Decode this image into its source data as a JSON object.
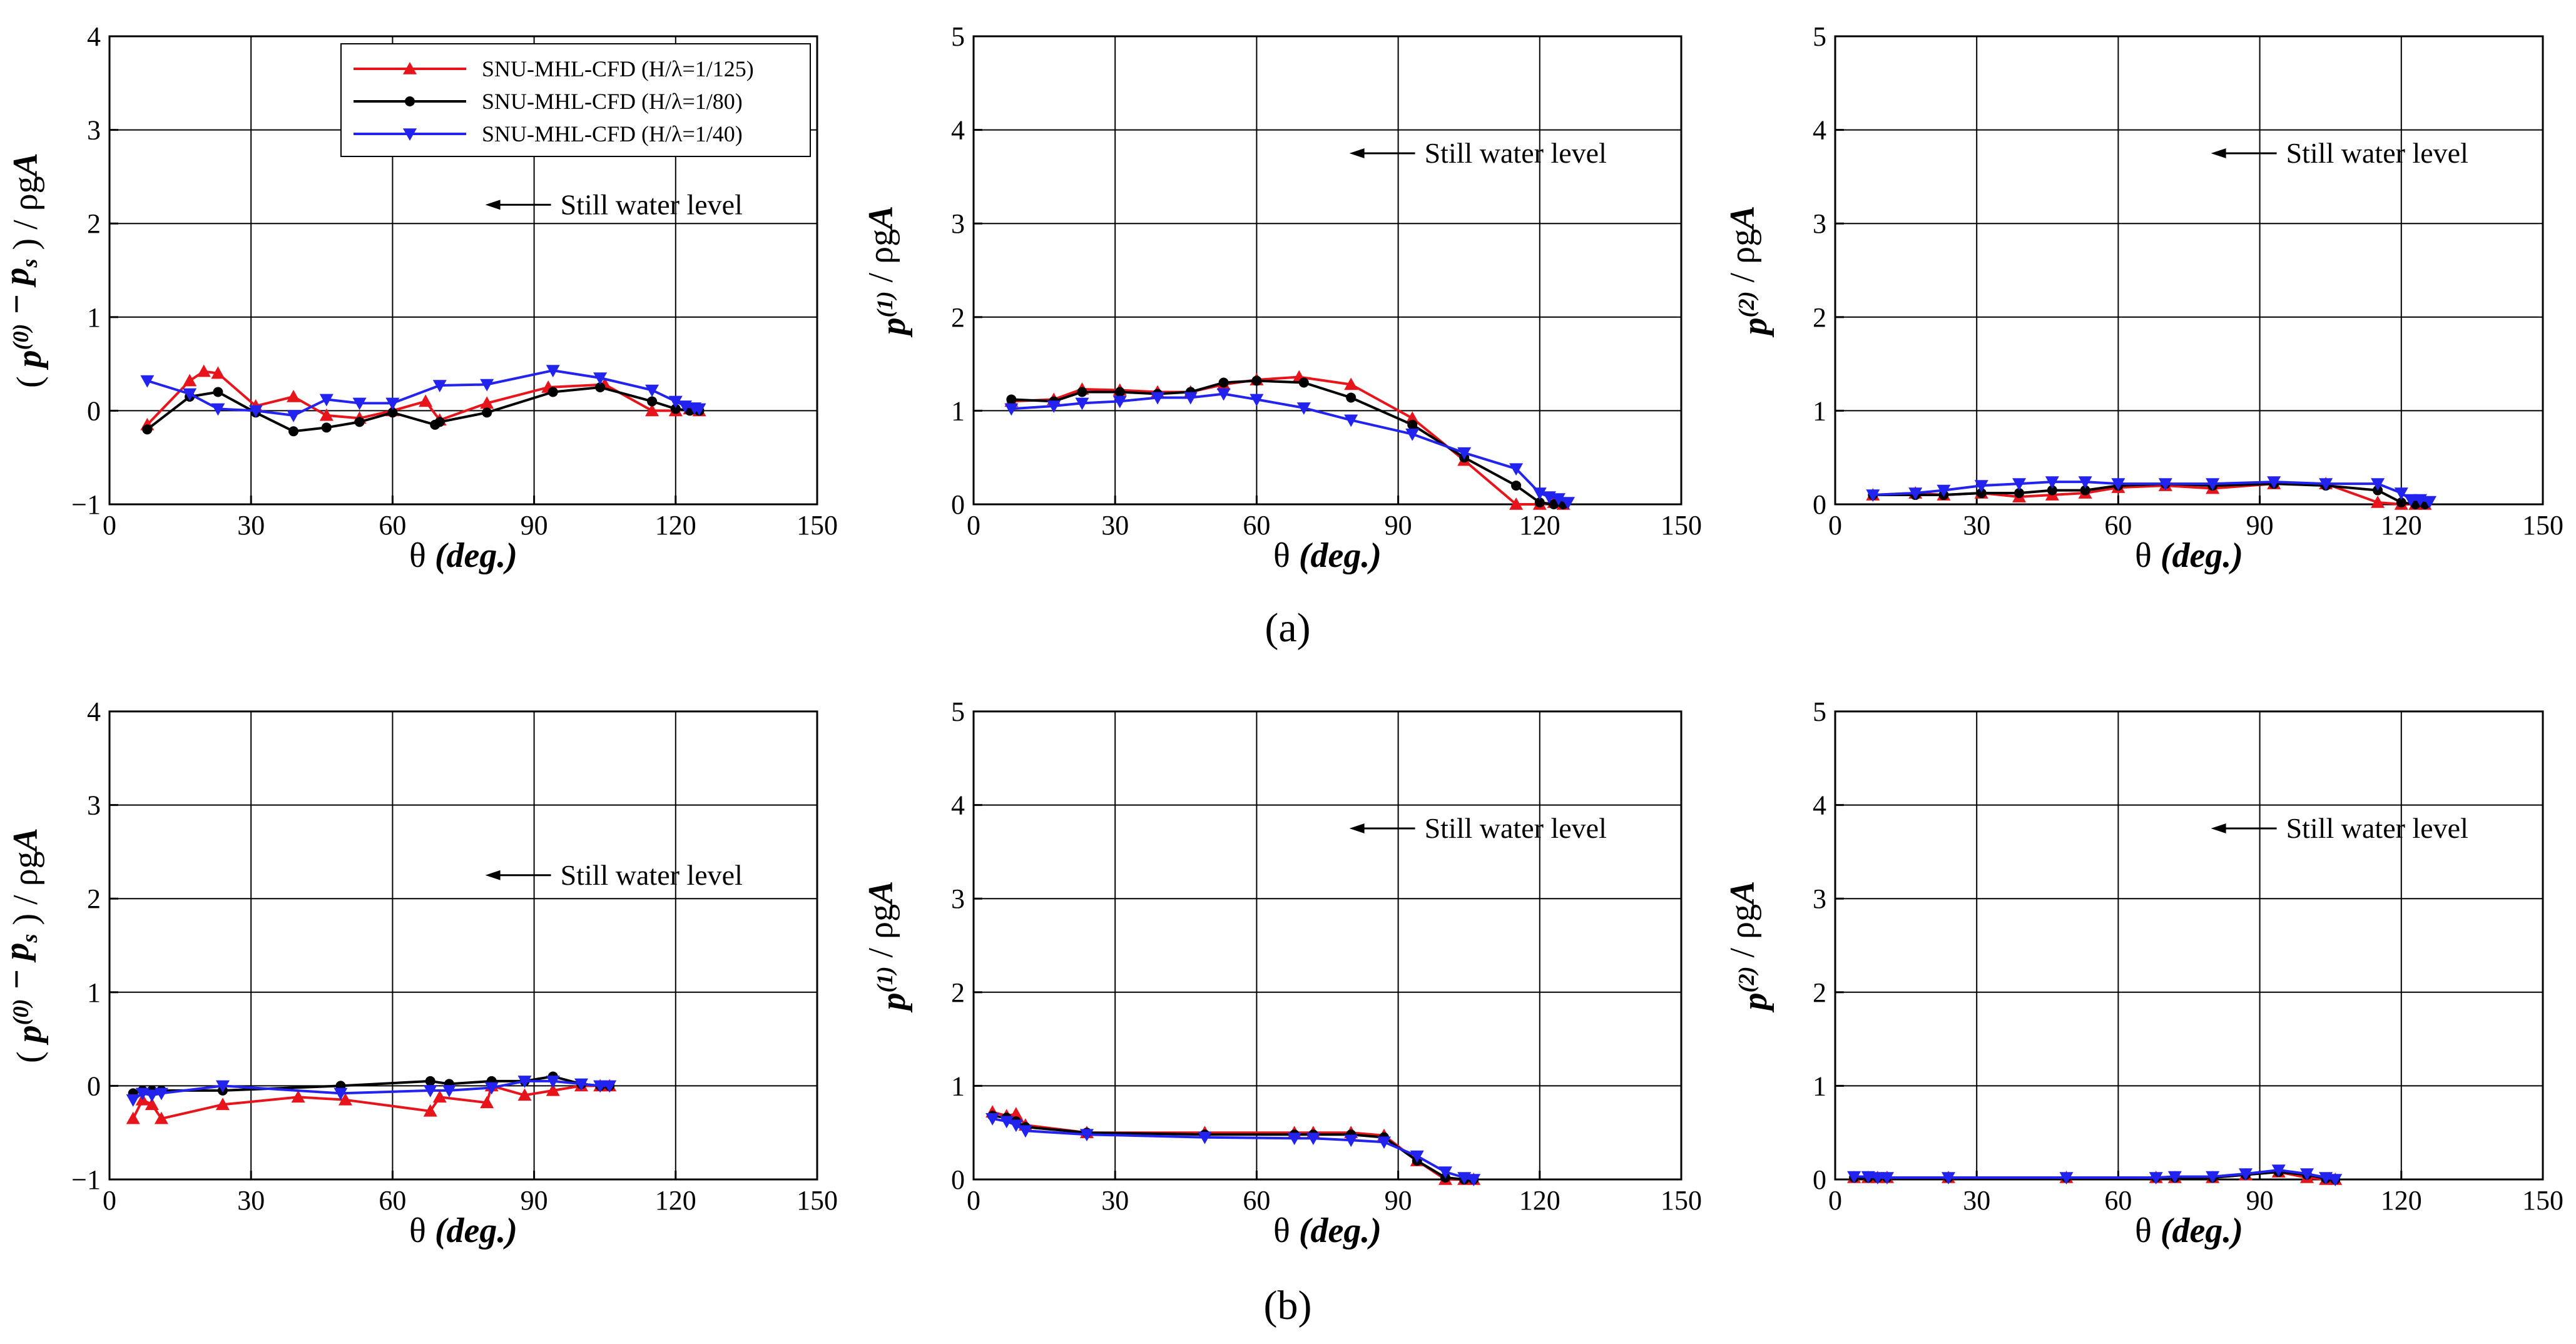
{
  "figure_labels": {
    "a": "(a)",
    "b": "(b)"
  },
  "legend": [
    {
      "label": "SNU-MHL-CFD (H/λ=1/125)",
      "color": "#e8141c",
      "marker": "triangle-up"
    },
    {
      "label": "SNU-MHL-CFD (H/λ=1/80)",
      "color": "#000000",
      "marker": "circle"
    },
    {
      "label": "SNU-MHL-CFD (H/λ=1/40)",
      "color": "#2323f0",
      "marker": "triangle-down"
    }
  ],
  "annotation": "Still water level",
  "colors": {
    "s125": "#e8141c",
    "s80": "#000000",
    "s40": "#2323f0"
  },
  "chart_data": [
    {
      "id": "a0",
      "type": "line",
      "row": "a",
      "xlabel": "θ (deg.)",
      "ylabel": "(p(0) − ps) / ρgA",
      "xlim": [
        0,
        150
      ],
      "ylim": [
        -1,
        4
      ],
      "xticks": [
        0,
        30,
        60,
        90,
        120,
        150
      ],
      "yticks": [
        -1,
        0,
        1,
        2,
        3,
        4
      ],
      "annotation_at": [
        90,
        2.2
      ],
      "series": [
        {
          "name": "SNU-MHL-CFD (H/λ=1/125)",
          "x": [
            8,
            17,
            20,
            23,
            31,
            39,
            46,
            53,
            60,
            67,
            70,
            80,
            93,
            105,
            115,
            120,
            123,
            125
          ],
          "y": [
            -0.15,
            0.32,
            0.42,
            0.4,
            0.05,
            0.15,
            -0.05,
            -0.08,
            0.0,
            0.1,
            -0.1,
            0.08,
            0.25,
            0.28,
            0.0,
            0.0,
            0.02,
            0.0
          ]
        },
        {
          "name": "SNU-MHL-CFD (H/λ=1/80)",
          "x": [
            8,
            17,
            23,
            31,
            39,
            46,
            53,
            60,
            69,
            70,
            80,
            94,
            104,
            115,
            120,
            123,
            125
          ],
          "y": [
            -0.2,
            0.15,
            0.2,
            -0.02,
            -0.22,
            -0.18,
            -0.12,
            -0.02,
            -0.15,
            -0.12,
            -0.02,
            0.2,
            0.25,
            0.1,
            0.02,
            0.0,
            0.0
          ]
        },
        {
          "name": "SNU-MHL-CFD (H/λ=1/40)",
          "x": [
            8,
            17,
            23,
            31,
            39,
            46,
            53,
            60,
            70,
            80,
            94,
            104,
            115,
            120,
            122,
            124,
            125
          ],
          "y": [
            0.32,
            0.18,
            0.02,
            0.0,
            -0.05,
            0.12,
            0.08,
            0.08,
            0.27,
            0.28,
            0.43,
            0.35,
            0.22,
            0.1,
            0.05,
            0.03,
            0.02
          ]
        }
      ]
    },
    {
      "id": "a1",
      "type": "line",
      "row": "a",
      "xlabel": "θ (deg.)",
      "ylabel": "p(1) / ρgA",
      "xlim": [
        0,
        150
      ],
      "ylim": [
        0,
        5
      ],
      "xticks": [
        0,
        30,
        60,
        90,
        120,
        150
      ],
      "yticks": [
        0,
        1,
        2,
        3,
        4,
        5
      ],
      "annotation_at": [
        90,
        3.75
      ],
      "series": [
        {
          "name": "SNU-MHL-CFD (H/λ=1/125)",
          "x": [
            8,
            17,
            23,
            31,
            39,
            46,
            53,
            60,
            69,
            80,
            93,
            104,
            115,
            120,
            123,
            125
          ],
          "y": [
            1.1,
            1.12,
            1.23,
            1.22,
            1.2,
            1.2,
            1.28,
            1.33,
            1.36,
            1.28,
            0.92,
            0.47,
            0.0,
            0.0,
            0.02,
            0.0
          ]
        },
        {
          "name": "SNU-MHL-CFD (H/λ=1/80)",
          "x": [
            8,
            17,
            23,
            31,
            39,
            46,
            53,
            60,
            70,
            80,
            93,
            104,
            115,
            120,
            123,
            125
          ],
          "y": [
            1.12,
            1.1,
            1.2,
            1.2,
            1.18,
            1.2,
            1.3,
            1.32,
            1.3,
            1.14,
            0.85,
            0.5,
            0.2,
            0.02,
            0.0,
            0.0
          ]
        },
        {
          "name": "SNU-MHL-CFD (H/λ=1/40)",
          "x": [
            8,
            17,
            23,
            31,
            39,
            46,
            53,
            60,
            70,
            80,
            93,
            104,
            115,
            120,
            122,
            124,
            126
          ],
          "y": [
            1.02,
            1.05,
            1.08,
            1.1,
            1.14,
            1.14,
            1.18,
            1.12,
            1.03,
            0.9,
            0.75,
            0.55,
            0.38,
            0.12,
            0.08,
            0.06,
            0.02
          ]
        }
      ]
    },
    {
      "id": "a2",
      "type": "line",
      "row": "a",
      "xlabel": "θ (deg.)",
      "ylabel": "p(2) / ρgA",
      "xlim": [
        0,
        150
      ],
      "ylim": [
        0,
        5
      ],
      "xticks": [
        0,
        30,
        60,
        90,
        120,
        150
      ],
      "yticks": [
        0,
        1,
        2,
        3,
        4,
        5
      ],
      "annotation_at": [
        90,
        3.75
      ],
      "series": [
        {
          "name": "SNU-MHL-CFD (H/λ=1/125)",
          "x": [
            8,
            17,
            23,
            31,
            39,
            46,
            53,
            60,
            70,
            80,
            93,
            104,
            115,
            120,
            123,
            125
          ],
          "y": [
            0.1,
            0.12,
            0.1,
            0.12,
            0.08,
            0.1,
            0.12,
            0.18,
            0.2,
            0.17,
            0.22,
            0.22,
            0.02,
            0.0,
            0.0,
            0.0
          ]
        },
        {
          "name": "SNU-MHL-CFD (H/λ=1/80)",
          "x": [
            8,
            17,
            23,
            31,
            39,
            46,
            53,
            60,
            70,
            80,
            93,
            104,
            115,
            120,
            123,
            125
          ],
          "y": [
            0.1,
            0.1,
            0.1,
            0.12,
            0.12,
            0.15,
            0.15,
            0.2,
            0.22,
            0.2,
            0.22,
            0.2,
            0.15,
            0.02,
            0.0,
            0.0
          ]
        },
        {
          "name": "SNU-MHL-CFD (H/λ=1/40)",
          "x": [
            8,
            17,
            23,
            31,
            39,
            46,
            53,
            60,
            70,
            80,
            93,
            104,
            115,
            120,
            122,
            124,
            126
          ],
          "y": [
            0.1,
            0.12,
            0.15,
            0.2,
            0.22,
            0.24,
            0.24,
            0.22,
            0.22,
            0.22,
            0.24,
            0.22,
            0.22,
            0.12,
            0.05,
            0.05,
            0.03
          ]
        }
      ]
    },
    {
      "id": "b0",
      "type": "line",
      "row": "b",
      "xlabel": "θ (deg.)",
      "ylabel": "(p(0) − ps) / ρgA",
      "xlim": [
        0,
        150
      ],
      "ylim": [
        -1,
        4
      ],
      "xticks": [
        0,
        30,
        60,
        90,
        120,
        150
      ],
      "yticks": [
        -1,
        0,
        1,
        2,
        3,
        4
      ],
      "annotation_at": [
        90,
        2.25
      ],
      "series": [
        {
          "name": "SNU-MHL-CFD (H/λ=1/125)",
          "x": [
            5,
            7,
            9,
            11,
            24,
            40,
            50,
            68,
            70,
            80,
            81,
            88,
            94,
            100,
            104,
            106
          ],
          "y": [
            -0.35,
            -0.15,
            -0.2,
            -0.35,
            -0.2,
            -0.12,
            -0.15,
            -0.27,
            -0.12,
            -0.18,
            0.0,
            -0.1,
            -0.05,
            0.0,
            0.0,
            0.0
          ]
        },
        {
          "name": "SNU-MHL-CFD (H/λ=1/80)",
          "x": [
            5,
            7,
            9,
            11,
            24,
            49,
            68,
            72,
            81,
            88,
            94,
            100,
            104,
            106
          ],
          "y": [
            -0.08,
            -0.05,
            -0.05,
            -0.05,
            -0.05,
            0.0,
            0.05,
            0.02,
            0.05,
            0.05,
            0.1,
            0.02,
            0.0,
            0.0
          ]
        },
        {
          "name": "SNU-MHL-CFD (H/λ=1/40)",
          "x": [
            5,
            7,
            9,
            11,
            24,
            49,
            68,
            72,
            81,
            88,
            94,
            100,
            104,
            106
          ],
          "y": [
            -0.15,
            -0.08,
            -0.1,
            -0.08,
            0.0,
            -0.08,
            -0.05,
            -0.05,
            -0.02,
            0.05,
            0.05,
            0.02,
            0.0,
            0.0
          ]
        }
      ]
    },
    {
      "id": "b1",
      "type": "line",
      "row": "b",
      "xlabel": "θ (deg.)",
      "ylabel": "p(1) / ρgA",
      "xlim": [
        0,
        150
      ],
      "ylim": [
        0,
        5
      ],
      "xticks": [
        0,
        30,
        60,
        90,
        120,
        150
      ],
      "yticks": [
        0,
        1,
        2,
        3,
        4,
        5
      ],
      "annotation_at": [
        90,
        3.75
      ],
      "series": [
        {
          "name": "SNU-MHL-CFD (H/λ=1/125)",
          "x": [
            4,
            7,
            9,
            11,
            24,
            49,
            68,
            72,
            80,
            87,
            94,
            100,
            104,
            106
          ],
          "y": [
            0.72,
            0.68,
            0.7,
            0.58,
            0.5,
            0.5,
            0.5,
            0.5,
            0.5,
            0.47,
            0.2,
            0.0,
            0.0,
            0.0
          ]
        },
        {
          "name": "SNU-MHL-CFD (H/λ=1/80)",
          "x": [
            4,
            7,
            9,
            11,
            24,
            49,
            68,
            72,
            80,
            87,
            94,
            100,
            104,
            106
          ],
          "y": [
            0.68,
            0.66,
            0.62,
            0.56,
            0.5,
            0.48,
            0.48,
            0.48,
            0.48,
            0.45,
            0.2,
            0.02,
            0.0,
            0.0
          ]
        },
        {
          "name": "SNU-MHL-CFD (H/λ=1/40)",
          "x": [
            4,
            7,
            9,
            11,
            24,
            49,
            68,
            72,
            80,
            87,
            94,
            100,
            104,
            106
          ],
          "y": [
            0.65,
            0.62,
            0.58,
            0.52,
            0.48,
            0.45,
            0.44,
            0.44,
            0.42,
            0.4,
            0.25,
            0.08,
            0.02,
            0.0
          ]
        }
      ]
    },
    {
      "id": "b2",
      "type": "line",
      "row": "b",
      "xlabel": "θ (deg.)",
      "ylabel": "p(2) / ρgA",
      "xlim": [
        0,
        150
      ],
      "ylim": [
        0,
        5
      ],
      "xticks": [
        0,
        30,
        60,
        90,
        120,
        150
      ],
      "yticks": [
        0,
        1,
        2,
        3,
        4,
        5
      ],
      "annotation_at": [
        90,
        3.75
      ],
      "series": [
        {
          "name": "SNU-MHL-CFD (H/λ=1/125)",
          "x": [
            4,
            7,
            9,
            11,
            24,
            49,
            68,
            72,
            80,
            87,
            94,
            100,
            104,
            106
          ],
          "y": [
            0.02,
            0.02,
            0.02,
            0.02,
            0.02,
            0.02,
            0.02,
            0.02,
            0.02,
            0.05,
            0.08,
            0.02,
            0.0,
            0.0
          ]
        },
        {
          "name": "SNU-MHL-CFD (H/λ=1/80)",
          "x": [
            4,
            7,
            9,
            11,
            24,
            49,
            68,
            72,
            80,
            87,
            94,
            100,
            104,
            106
          ],
          "y": [
            0.02,
            0.02,
            0.02,
            0.02,
            0.02,
            0.02,
            0.02,
            0.02,
            0.02,
            0.05,
            0.08,
            0.05,
            0.01,
            0.0
          ]
        },
        {
          "name": "SNU-MHL-CFD (H/λ=1/40)",
          "x": [
            4,
            7,
            9,
            11,
            24,
            49,
            68,
            72,
            80,
            87,
            94,
            100,
            104,
            106
          ],
          "y": [
            0.03,
            0.03,
            0.02,
            0.02,
            0.02,
            0.02,
            0.02,
            0.03,
            0.03,
            0.06,
            0.1,
            0.06,
            0.02,
            0.0
          ]
        }
      ]
    }
  ]
}
